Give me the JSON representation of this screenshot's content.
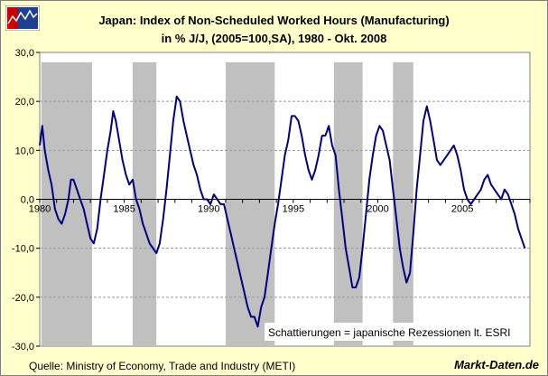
{
  "chart_data": {
    "type": "line",
    "title": "Japan: Index of Non-Scheduled Worked Hours (Manufacturing)",
    "subtitle": "in % J/J, (2005=100,SA), 1980 - Okt. 2008",
    "xlabel": "",
    "ylabel": "",
    "xlim": [
      1980,
      2009
    ],
    "ylim": [
      -30,
      30
    ],
    "x_ticks": [
      "1980",
      "1985",
      "1990",
      "1995",
      "2000",
      "2005"
    ],
    "y_ticks": [
      "30,0",
      "20,0",
      "10,0",
      "0,0",
      "-10,0",
      "-20,0",
      "-30,0"
    ],
    "grid": true,
    "line_color": "#000080",
    "recession_color": "#c0c0c0",
    "recessions": [
      [
        1980.1,
        1983.1
      ],
      [
        1985.5,
        1986.9
      ],
      [
        1991.0,
        1993.9
      ],
      [
        1997.4,
        1999.1
      ],
      [
        2000.9,
        2002.1
      ]
    ],
    "series": [
      {
        "values": [
          [
            1980.0,
            11
          ],
          [
            1980.15,
            15
          ],
          [
            1980.3,
            10
          ],
          [
            1980.5,
            6
          ],
          [
            1980.7,
            3
          ],
          [
            1980.9,
            -2
          ],
          [
            1981.1,
            -4
          ],
          [
            1981.3,
            -5
          ],
          [
            1981.5,
            -3
          ],
          [
            1981.7,
            0
          ],
          [
            1981.85,
            4
          ],
          [
            1982.0,
            4
          ],
          [
            1982.2,
            2
          ],
          [
            1982.4,
            0
          ],
          [
            1982.6,
            -2
          ],
          [
            1982.8,
            -5
          ],
          [
            1983.0,
            -8
          ],
          [
            1983.2,
            -9
          ],
          [
            1983.4,
            -6
          ],
          [
            1983.6,
            0
          ],
          [
            1983.8,
            5
          ],
          [
            1984.0,
            10
          ],
          [
            1984.2,
            14
          ],
          [
            1984.35,
            18
          ],
          [
            1984.5,
            16
          ],
          [
            1984.7,
            12
          ],
          [
            1984.9,
            8
          ],
          [
            1985.1,
            5
          ],
          [
            1985.3,
            3
          ],
          [
            1985.5,
            4
          ],
          [
            1985.7,
            0
          ],
          [
            1985.9,
            -2
          ],
          [
            1986.1,
            -5
          ],
          [
            1986.3,
            -7
          ],
          [
            1986.5,
            -9
          ],
          [
            1986.7,
            -10
          ],
          [
            1986.9,
            -11
          ],
          [
            1987.1,
            -9
          ],
          [
            1987.3,
            -4
          ],
          [
            1987.5,
            2
          ],
          [
            1987.7,
            9
          ],
          [
            1987.9,
            16
          ],
          [
            1988.1,
            21
          ],
          [
            1988.3,
            20
          ],
          [
            1988.5,
            16
          ],
          [
            1988.7,
            13
          ],
          [
            1988.9,
            10
          ],
          [
            1989.1,
            7
          ],
          [
            1989.3,
            5
          ],
          [
            1989.5,
            2
          ],
          [
            1989.7,
            0
          ],
          [
            1989.9,
            0
          ],
          [
            1990.1,
            -1
          ],
          [
            1990.3,
            1
          ],
          [
            1990.5,
            0
          ],
          [
            1990.7,
            -1
          ],
          [
            1990.9,
            -1
          ],
          [
            1991.1,
            -4
          ],
          [
            1991.3,
            -7
          ],
          [
            1991.5,
            -10
          ],
          [
            1991.7,
            -13
          ],
          [
            1991.9,
            -16
          ],
          [
            1992.1,
            -19
          ],
          [
            1992.3,
            -22
          ],
          [
            1992.5,
            -24
          ],
          [
            1992.7,
            -24
          ],
          [
            1992.9,
            -26
          ],
          [
            1993.1,
            -22
          ],
          [
            1993.3,
            -20
          ],
          [
            1993.5,
            -15
          ],
          [
            1993.7,
            -10
          ],
          [
            1993.9,
            -5
          ],
          [
            1994.1,
            -1
          ],
          [
            1994.3,
            4
          ],
          [
            1994.5,
            9
          ],
          [
            1994.7,
            12
          ],
          [
            1994.9,
            17
          ],
          [
            1995.1,
            17
          ],
          [
            1995.3,
            16
          ],
          [
            1995.5,
            13
          ],
          [
            1995.7,
            9
          ],
          [
            1995.9,
            6
          ],
          [
            1996.1,
            4
          ],
          [
            1996.3,
            6
          ],
          [
            1996.5,
            9
          ],
          [
            1996.7,
            13
          ],
          [
            1996.9,
            13
          ],
          [
            1997.1,
            15
          ],
          [
            1997.3,
            11
          ],
          [
            1997.5,
            9
          ],
          [
            1997.7,
            2
          ],
          [
            1997.9,
            -4
          ],
          [
            1998.1,
            -10
          ],
          [
            1998.3,
            -14
          ],
          [
            1998.5,
            -18
          ],
          [
            1998.7,
            -18
          ],
          [
            1998.9,
            -16
          ],
          [
            1999.1,
            -10
          ],
          [
            1999.3,
            -3
          ],
          [
            1999.5,
            4
          ],
          [
            1999.7,
            9
          ],
          [
            1999.9,
            13
          ],
          [
            2000.1,
            15
          ],
          [
            2000.3,
            14
          ],
          [
            2000.5,
            11
          ],
          [
            2000.7,
            8
          ],
          [
            2000.9,
            2
          ],
          [
            2001.1,
            -4
          ],
          [
            2001.3,
            -10
          ],
          [
            2001.5,
            -14
          ],
          [
            2001.7,
            -17
          ],
          [
            2001.9,
            -15
          ],
          [
            2002.1,
            -7
          ],
          [
            2002.3,
            2
          ],
          [
            2002.5,
            9
          ],
          [
            2002.7,
            16
          ],
          [
            2002.9,
            19
          ],
          [
            2003.1,
            16
          ],
          [
            2003.3,
            12
          ],
          [
            2003.5,
            8
          ],
          [
            2003.7,
            7
          ],
          [
            2003.9,
            8
          ],
          [
            2004.1,
            9
          ],
          [
            2004.3,
            10
          ],
          [
            2004.5,
            11
          ],
          [
            2004.7,
            9
          ],
          [
            2004.9,
            6
          ],
          [
            2005.1,
            2
          ],
          [
            2005.3,
            0
          ],
          [
            2005.5,
            -1
          ],
          [
            2005.7,
            0
          ],
          [
            2005.9,
            1
          ],
          [
            2006.1,
            2
          ],
          [
            2006.3,
            4
          ],
          [
            2006.5,
            5
          ],
          [
            2006.7,
            3
          ],
          [
            2006.9,
            2
          ],
          [
            2007.1,
            1
          ],
          [
            2007.3,
            0
          ],
          [
            2007.5,
            2
          ],
          [
            2007.7,
            1
          ],
          [
            2007.9,
            -1
          ],
          [
            2008.1,
            -3
          ],
          [
            2008.3,
            -6
          ],
          [
            2008.5,
            -8
          ],
          [
            2008.7,
            -10
          ]
        ]
      }
    ]
  },
  "note": "Schattierungen = japanische Rezessionen lt. ESRI",
  "source": "Quelle:  Ministry of Economy, Trade and Industry (METI)",
  "brand": "Markt-Daten.de"
}
